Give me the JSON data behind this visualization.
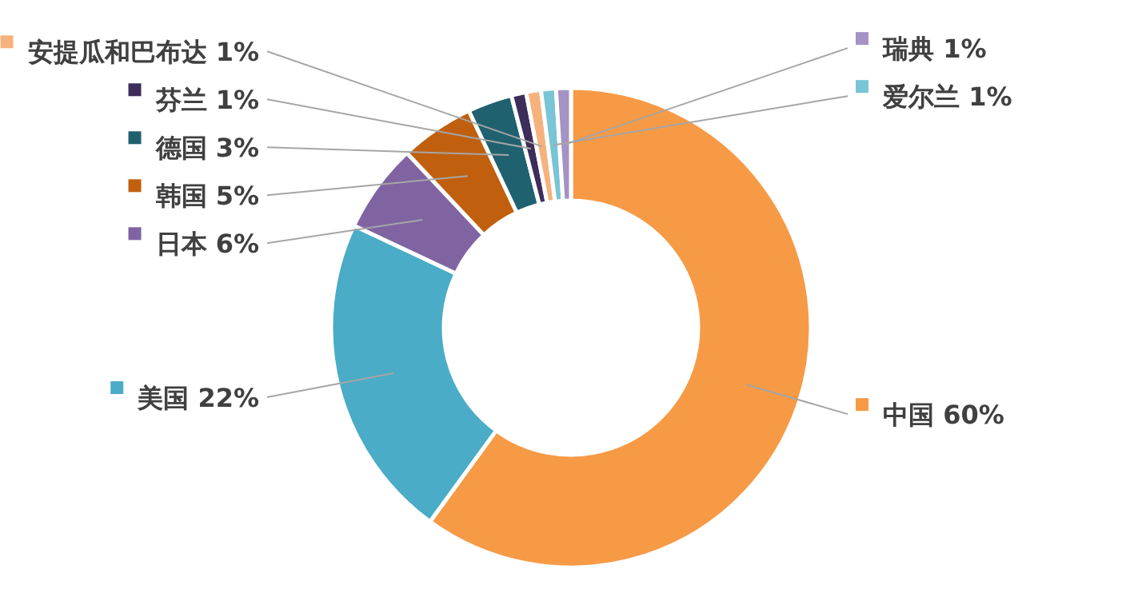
{
  "chart_data": {
    "type": "donut",
    "categories": [
      "中国",
      "美国",
      "日本",
      "韩国",
      "德国",
      "芬兰",
      "安提瓜和巴布达",
      "爱尔兰",
      "瑞典"
    ],
    "values": [
      60,
      22,
      6,
      5,
      3,
      1,
      1,
      1,
      1
    ],
    "value_labels": [
      "60%",
      "22%",
      "6%",
      "5%",
      "3%",
      "1%",
      "1%",
      "1%",
      "1%"
    ],
    "legend": "left",
    "colors": [
      "#f79a46",
      "#4aacc6",
      "#8064a2",
      "#c0600f",
      "#206170",
      "#3d2d5a",
      "#f6b27c",
      "#78c5d6",
      "#a493c4"
    ]
  }
}
